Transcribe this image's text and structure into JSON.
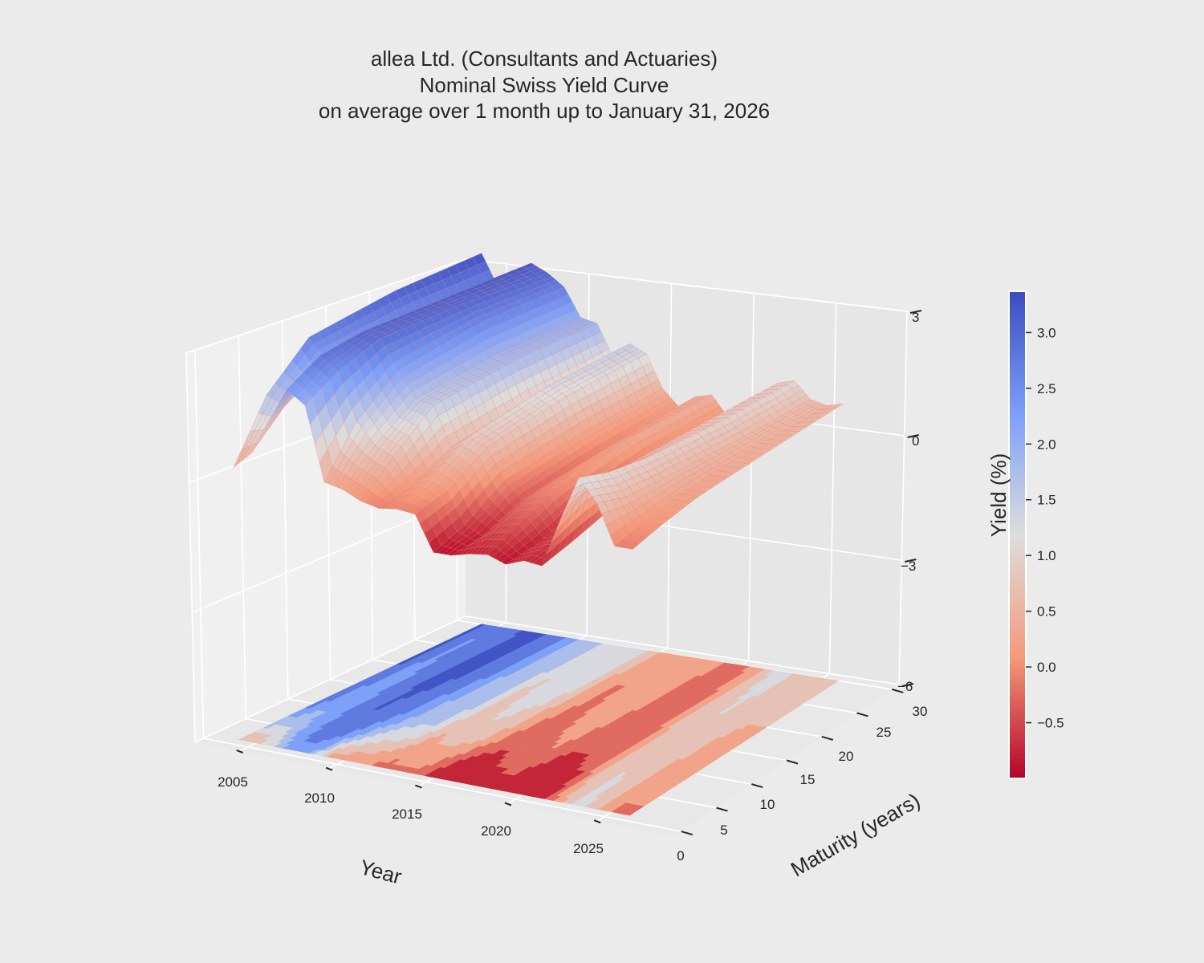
{
  "chart_data": {
    "type": "surface",
    "title": [
      "allea Ltd. (Consultants and Actuaries)",
      "Nominal Swiss Yield Curve",
      "on average over 1 month up to January 31, 2026"
    ],
    "xlabel": "Year",
    "ylabel": "Maturity (years)",
    "zlabel": "Yield (%)",
    "colorbar_label": "Yield (%)",
    "colormap": "coolwarm_r",
    "colormap_colors": [
      "#b40426",
      "#f49a7b",
      "#dddddd",
      "#7c9ff9",
      "#3b4cc0"
    ],
    "x_ticks": [
      "2005",
      "2010",
      "2015",
      "2020",
      "2025"
    ],
    "y_ticks": [
      "0",
      "5",
      "10",
      "15",
      "20",
      "25",
      "30"
    ],
    "z_ticks": [
      "−6",
      "−3",
      "0",
      "3"
    ],
    "zlim": [
      -6,
      3
    ],
    "colorbar_ticks": [
      "−0.5",
      "0.0",
      "0.5",
      "1.0",
      "1.5",
      "2.0",
      "2.5",
      "3.0"
    ],
    "colorbar_range": [
      -1.0,
      3.37
    ],
    "floor_contour": true,
    "grid": true,
    "maturities": [
      1,
      5,
      10,
      20,
      30
    ],
    "years": [
      2004,
      2005,
      2006,
      2007,
      2008,
      2009,
      2010,
      2011,
      2012,
      2013,
      2014,
      2015,
      2016,
      2017,
      2018,
      2019,
      2020,
      2021,
      2022,
      2023,
      2024,
      2025,
      2026
    ],
    "yields": [
      [
        0.3,
        1.7,
        2.7,
        3.1,
        3.3
      ],
      [
        0.7,
        1.5,
        2.1,
        2.4,
        2.5
      ],
      [
        1.5,
        2.2,
        2.5,
        2.6,
        2.7
      ],
      [
        2.3,
        2.8,
        3.0,
        3.1,
        3.2
      ],
      [
        2.0,
        2.5,
        2.9,
        3.0,
        3.0
      ],
      [
        0.3,
        1.4,
        2.2,
        2.6,
        2.7
      ],
      [
        0.2,
        0.9,
        1.6,
        1.9,
        2.0
      ],
      [
        0.0,
        0.7,
        1.5,
        1.8,
        1.9
      ],
      [
        -0.1,
        0.1,
        0.6,
        0.9,
        1.1
      ],
      [
        -0.05,
        0.3,
        0.9,
        1.3,
        1.5
      ],
      [
        -0.1,
        0.1,
        0.7,
        1.1,
        1.3
      ],
      [
        -0.9,
        -0.6,
        0.0,
        0.3,
        0.5
      ],
      [
        -0.9,
        -0.8,
        -0.4,
        -0.1,
        0.1
      ],
      [
        -0.8,
        -0.5,
        -0.1,
        0.2,
        0.4
      ],
      [
        -0.75,
        -0.4,
        0.0,
        0.4,
        0.5
      ],
      [
        -0.9,
        -0.8,
        -0.5,
        -0.2,
        0.0
      ],
      [
        -0.75,
        -0.6,
        -0.5,
        -0.3,
        -0.1
      ],
      [
        -0.8,
        -0.6,
        -0.3,
        -0.05,
        0.1
      ],
      [
        0.3,
        0.7,
        0.8,
        0.9,
        1.0
      ],
      [
        1.3,
        1.1,
        1.0,
        1.0,
        1.1
      ],
      [
        0.8,
        0.6,
        0.6,
        0.6,
        0.7
      ],
      [
        -0.1,
        0.1,
        0.3,
        0.5,
        0.6
      ],
      [
        -0.1,
        0.1,
        0.3,
        0.5,
        0.7
      ]
    ]
  }
}
